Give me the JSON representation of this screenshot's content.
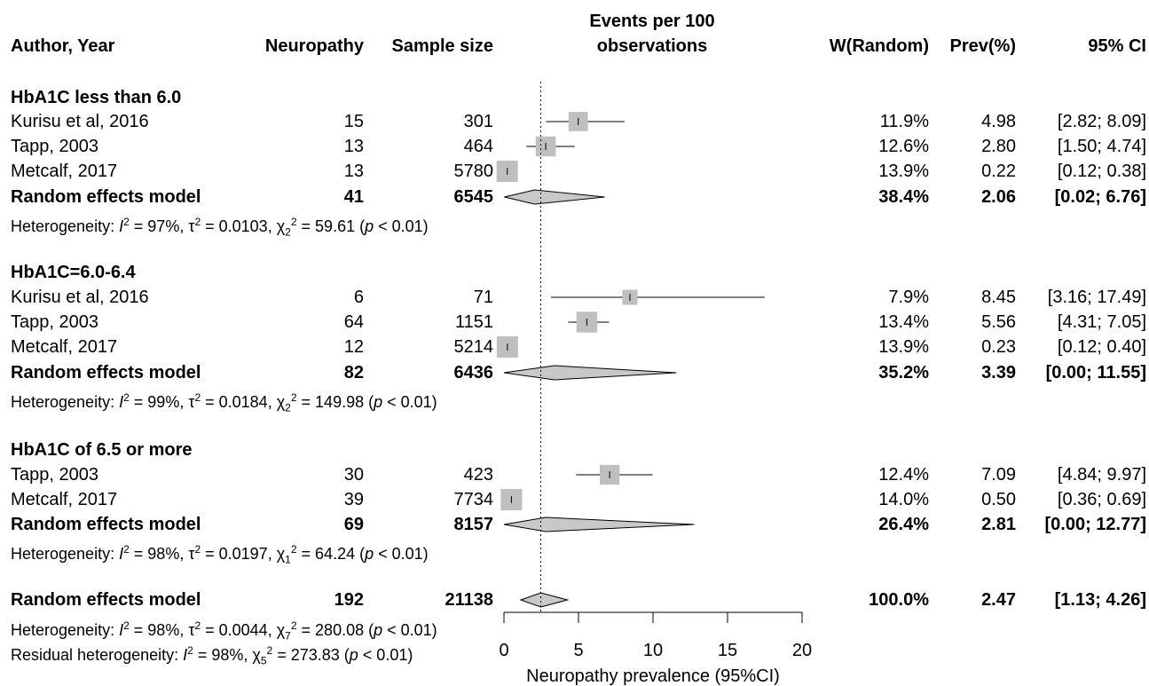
{
  "chart_data": {
    "type": "forest",
    "headers": {
      "author": "Author, Year",
      "events": "Neuropathy",
      "n": "Sample size",
      "plot_line1": "Events per 100",
      "plot_line2": "observations",
      "weight": "W(Random)",
      "prev": "Prev(%)",
      "ci": "95% CI"
    },
    "xaxis": {
      "min": 0,
      "max": 20,
      "ticks": [
        0,
        5,
        10,
        15,
        20
      ],
      "label": "Neuropathy prevalence (95%CI)",
      "reference_line": 2.47
    },
    "groups": [
      {
        "title": "HbA1C less than 6.0",
        "studies": [
          {
            "study": "Kurisu et al, 2016",
            "events": "15",
            "n": "301",
            "weight": "11.9%",
            "prev_text": "4.98",
            "ci_text": "[2.82;  8.09]",
            "est": 4.98,
            "lo": 2.82,
            "hi": 8.09,
            "w": 11.9
          },
          {
            "study": "Tapp, 2003",
            "events": "13",
            "n": "464",
            "weight": "12.6%",
            "prev_text": "2.80",
            "ci_text": "[1.50;  4.74]",
            "est": 2.8,
            "lo": 1.5,
            "hi": 4.74,
            "w": 12.6
          },
          {
            "study": "Metcalf, 2017",
            "events": "13",
            "n": "5780",
            "weight": "13.9%",
            "prev_text": "0.22",
            "ci_text": "[0.12;  0.38]",
            "est": 0.22,
            "lo": 0.12,
            "hi": 0.38,
            "w": 13.9
          }
        ],
        "pooled": {
          "label": "Random effects model",
          "events": "41",
          "n": "6545",
          "weight": "38.4%",
          "prev_text": "2.06",
          "ci_text": "[0.02;  6.76]",
          "est": 2.06,
          "lo": 0.02,
          "hi": 6.76
        },
        "het": {
          "i2": "97%",
          "tau2": "0.0103",
          "df": "2",
          "chi2": "59.61",
          "p": "0.01"
        }
      },
      {
        "title": "HbA1C=6.0-6.4",
        "studies": [
          {
            "study": "Kurisu et al, 2016",
            "events": "6",
            "n": "71",
            "weight": "7.9%",
            "prev_text": "8.45",
            "ci_text": "[3.16; 17.49]",
            "est": 8.45,
            "lo": 3.16,
            "hi": 17.49,
            "w": 7.9
          },
          {
            "study": "Tapp, 2003",
            "events": "64",
            "n": "1151",
            "weight": "13.4%",
            "prev_text": "5.56",
            "ci_text": "[4.31;  7.05]",
            "est": 5.56,
            "lo": 4.31,
            "hi": 7.05,
            "w": 13.4
          },
          {
            "study": "Metcalf, 2017",
            "events": "12",
            "n": "5214",
            "weight": "13.9%",
            "prev_text": "0.23",
            "ci_text": "[0.12;  0.40]",
            "est": 0.23,
            "lo": 0.12,
            "hi": 0.4,
            "w": 13.9
          }
        ],
        "pooled": {
          "label": "Random effects model",
          "events": "82",
          "n": "6436",
          "weight": "35.2%",
          "prev_text": "3.39",
          "ci_text": "[0.00; 11.55]",
          "est": 3.39,
          "lo": 0.0,
          "hi": 11.55
        },
        "het": {
          "i2": "99%",
          "tau2": "0.0184",
          "df": "2",
          "chi2": "149.98",
          "p": "0.01"
        }
      },
      {
        "title": "HbA1C of 6.5 or more",
        "studies": [
          {
            "study": "Tapp, 2003",
            "events": "30",
            "n": "423",
            "weight": "12.4%",
            "prev_text": "7.09",
            "ci_text": "[4.84;  9.97]",
            "est": 7.09,
            "lo": 4.84,
            "hi": 9.97,
            "w": 12.4
          },
          {
            "study": "Metcalf, 2017",
            "events": "39",
            "n": "7734",
            "weight": "14.0%",
            "prev_text": "0.50",
            "ci_text": "[0.36;  0.69]",
            "est": 0.5,
            "lo": 0.36,
            "hi": 0.69,
            "w": 14.0
          }
        ],
        "pooled": {
          "label": "Random effects model",
          "events": "69",
          "n": "8157",
          "weight": "26.4%",
          "prev_text": "2.81",
          "ci_text": "[0.00; 12.77]",
          "est": 2.81,
          "lo": 0.0,
          "hi": 12.77
        },
        "het": {
          "i2": "98%",
          "tau2": "0.0197",
          "df": "1",
          "chi2": "64.24",
          "p": "0.01"
        }
      }
    ],
    "overall": {
      "label": "Random effects model",
      "events": "192",
      "n": "21138",
      "weight": "100.0%",
      "prev_text": "2.47",
      "ci_text": "[1.13;  4.26]",
      "est": 2.47,
      "lo": 1.13,
      "hi": 4.26,
      "het": {
        "i2": "98%",
        "tau2": "0.0044",
        "df": "7",
        "chi2": "280.08",
        "p": "0.01"
      },
      "resid_het": {
        "i2": "98%",
        "df": "5",
        "chi2": "273.83",
        "p": "0.01"
      }
    },
    "colors": {
      "square": "#bfbfbf",
      "diamond": "#c8c8c8",
      "line": "#000000"
    }
  }
}
